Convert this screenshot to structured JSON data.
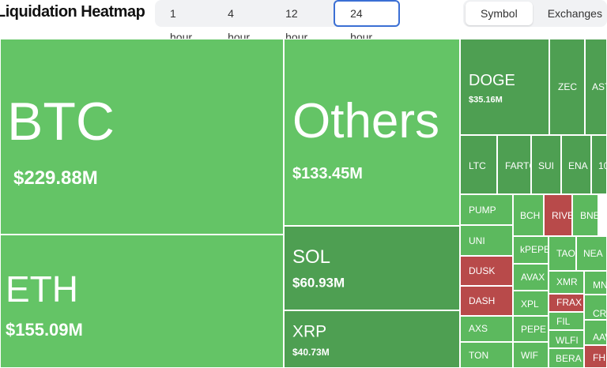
{
  "header": {
    "title": "Liquidation Heatmap",
    "time_tabs": [
      "1 hour",
      "4 hour",
      "12 hour",
      "24 hour"
    ],
    "view_tabs": [
      "Symbol",
      "Exchanges"
    ]
  },
  "tiles": [
    {
      "label": "BTC",
      "value": "$229.88M",
      "color": "#64c466"
    },
    {
      "label": "ETH",
      "value": "$155.09M",
      "color": "#64c466"
    },
    {
      "label": "Others",
      "value": "$133.45M",
      "color": "#64c466"
    },
    {
      "label": "SOL",
      "value": "$60.93M",
      "color": "#4e9f52"
    },
    {
      "label": "XRP",
      "value": "$40.73M",
      "color": "#4e9f52"
    },
    {
      "label": "DOGE",
      "value": "$35.16M",
      "color": "#4e9f52"
    },
    {
      "label": "ZEC",
      "color": "#4e9f52"
    },
    {
      "label": "AST",
      "color": "#4e9f52"
    },
    {
      "label": "LTC",
      "color": "#4e9f52"
    },
    {
      "label": "FARTC",
      "color": "#4e9f52"
    },
    {
      "label": "SUI",
      "color": "#4e9f52"
    },
    {
      "label": "ENA",
      "color": "#4e9f52"
    },
    {
      "label": "10",
      "color": "#4e9f52"
    },
    {
      "label": "PUMP",
      "color": "#5cb95e"
    },
    {
      "label": "UNI",
      "color": "#5cb95e"
    },
    {
      "label": "DUSK",
      "color": "#b84a4a"
    },
    {
      "label": "DASH",
      "color": "#b84a4a"
    },
    {
      "label": "AXS",
      "color": "#5cb95e"
    },
    {
      "label": "TON",
      "color": "#5cb95e"
    },
    {
      "label": "BCH",
      "color": "#5cb95e"
    },
    {
      "label": "RIVE",
      "color": "#b84a4a"
    },
    {
      "label": "BNE",
      "color": "#5cb95e"
    },
    {
      "label": "kPEPE",
      "color": "#5cb95e"
    },
    {
      "label": "TAO",
      "color": "#5cb95e"
    },
    {
      "label": "NEA",
      "color": "#5cb95e"
    },
    {
      "label": "AVAX",
      "color": "#5cb95e"
    },
    {
      "label": "XPL",
      "color": "#5cb95e"
    },
    {
      "label": "PEPE",
      "color": "#5cb95e"
    },
    {
      "label": "WIF",
      "color": "#5cb95e"
    },
    {
      "label": "XMR",
      "color": "#5cb95e"
    },
    {
      "label": "MN",
      "color": "#5cb95e"
    },
    {
      "label": "FRAX",
      "color": "#b84a4a"
    },
    {
      "label": "CR",
      "color": "#5cb95e"
    },
    {
      "label": "FIL",
      "color": "#5cb95e"
    },
    {
      "label": "WLFI",
      "color": "#5cb95e"
    },
    {
      "label": "AAV",
      "color": "#5cb95e"
    },
    {
      "label": "BERA",
      "color": "#5cb95e"
    },
    {
      "label": "FHE",
      "color": "#b84a4a"
    }
  ]
}
